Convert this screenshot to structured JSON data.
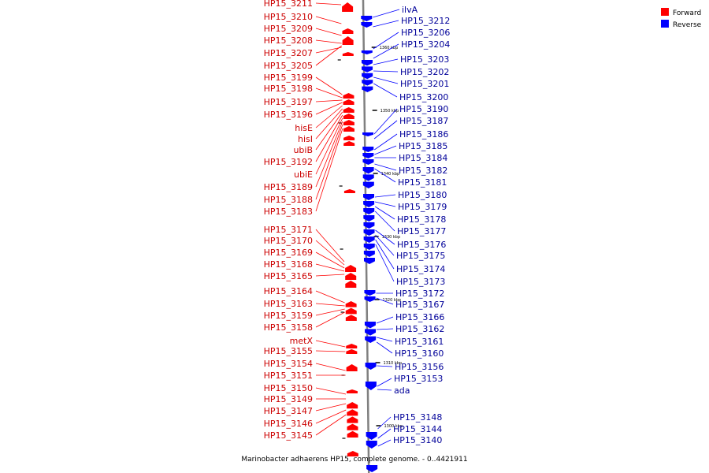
{
  "caption": "Marinobacter adhaerens HP15, complete genome. - 0..4421911",
  "legend": [
    {
      "label": "Forward",
      "color": "#ff0000"
    },
    {
      "label": "Reverse",
      "color": "#0000ff"
    }
  ],
  "colors": {
    "forward": "#ff0000",
    "reverse": "#0000ff",
    "forward_text": "#cc0000",
    "reverse_text": "#000099",
    "backbone": "#808080"
  },
  "scale_ticks": [
    "1360 kbp",
    "1350 kbp",
    "1340 kbp",
    "1330 kbp",
    "1320 kbp",
    "1310 kbp",
    "1300 kbp"
  ],
  "forward_labels": [
    "HP15_3211",
    "HP15_3210",
    "HP15_3209",
    "HP15_3208",
    "HP15_3207",
    "HP15_3205",
    "HP15_3199",
    "HP15_3198",
    "HP15_3197",
    "HP15_3196",
    "hisE",
    "hisI",
    "ubiB",
    "HP15_3192",
    "ubiE",
    "HP15_3189",
    "HP15_3188",
    "HP15_3183",
    "HP15_3171",
    "HP15_3170",
    "HP15_3169",
    "HP15_3168",
    "HP15_3165",
    "HP15_3164",
    "HP15_3163",
    "HP15_3159",
    "HP15_3158",
    "metX",
    "HP15_3155",
    "HP15_3154",
    "HP15_3151",
    "HP15_3150",
    "HP15_3149",
    "HP15_3147",
    "HP15_3146",
    "HP15_3145"
  ],
  "reverse_labels": [
    "ilvA",
    "HP15_3212",
    "HP15_3206",
    "HP15_3204",
    "HP15_3203",
    "HP15_3202",
    "HP15_3201",
    "HP15_3200",
    "HP15_3190",
    "HP15_3187",
    "HP15_3186",
    "HP15_3185",
    "HP15_3184",
    "HP15_3182",
    "HP15_3181",
    "HP15_3180",
    "HP15_3179",
    "HP15_3178",
    "HP15_3177",
    "HP15_3176",
    "HP15_3175",
    "HP15_3174",
    "HP15_3173",
    "HP15_3172",
    "HP15_3167",
    "HP15_3166",
    "HP15_3162",
    "HP15_3161",
    "HP15_3160",
    "HP15_3156",
    "HP15_3153",
    "ada",
    "HP15_3148",
    "HP15_3144",
    "HP15_3140"
  ]
}
